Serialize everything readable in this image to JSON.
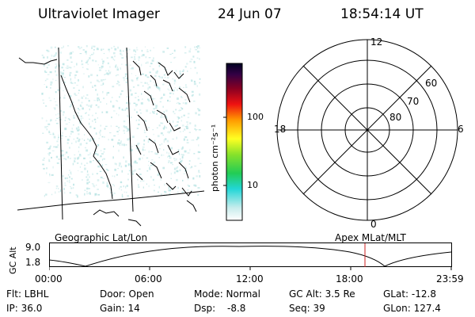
{
  "header": {
    "instrument": "Ultraviolet Imager",
    "date": "24 Jun 07",
    "time": "18:54:14 UT"
  },
  "colorbar": {
    "label": "photon cm⁻²s⁻¹",
    "ticks": [
      "100",
      "10"
    ]
  },
  "polar": {
    "mlt_labels": {
      "top": "12",
      "left": "18",
      "right": "6",
      "bottom": "0"
    },
    "lat_labels": [
      "60",
      "70",
      "80"
    ]
  },
  "geo_label": "Geographic Lat/Lon",
  "apex_label": "Apex MLat/MLT",
  "alt_panel": {
    "ylabel": "GC Alt",
    "yticks": [
      "9.0",
      "1.8"
    ],
    "xticks": [
      "00:00",
      "06:00",
      "12:00",
      "18:00",
      "23:59"
    ]
  },
  "info": {
    "row1": {
      "flt": "Flt: LBHL",
      "door": "Door: Open",
      "mode": "Mode: Normal",
      "gcalt": "GC Alt: 3.5 Re",
      "glat": "GLat: -12.8"
    },
    "row2": {
      "ip": "IP: 36.0",
      "gain": "Gain: 14",
      "dsp_label": "Dsp:",
      "dsp_value": "-8.8",
      "seq": "Seq: 39",
      "glon": "GLon: 127.4"
    }
  },
  "colors": {
    "speckle": "#bfe6e6",
    "marker": "#cc2222"
  }
}
